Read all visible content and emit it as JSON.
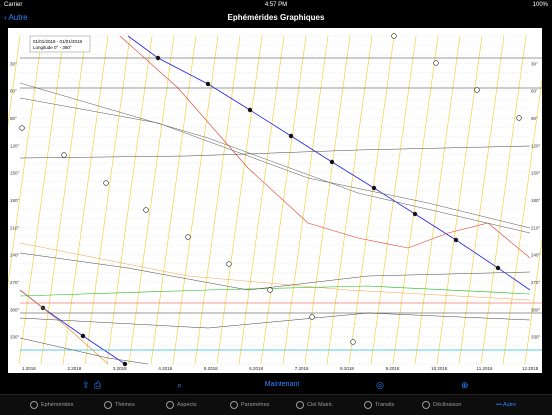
{
  "status": {
    "carrier": "Carrier",
    "time": "4:57 PM",
    "battery": "100%"
  },
  "nav": {
    "back": "Autre",
    "title": "Ephémérides Graphiques"
  },
  "chart_info": {
    "range": "01/01/2018 - 01/01/2018",
    "longitude": "Longitude 0° - 360°"
  },
  "y_axis": [
    "30°",
    "60°",
    "90°",
    "120°",
    "150°",
    "180°",
    "210°",
    "240°",
    "270°",
    "300°",
    "330°"
  ],
  "x_axis": [
    "1.2018",
    "2.2018",
    "3.2018",
    "4.2018",
    "5.2018",
    "6.2018",
    "7.2018",
    "8.2018",
    "9.2018",
    "10.2018",
    "11.2018",
    "12.2018"
  ],
  "toolbar": {
    "now": "Maintenant"
  },
  "tabs": [
    "Ephémérides",
    "Thèmes",
    "Aspects",
    "Paramètres",
    "Ciel Maint.",
    "Transits",
    "Déclinaison",
    "Autre"
  ],
  "colors": {
    "accent": "#2a86ff",
    "blue_line": "#2222ee",
    "red_line": "#e03a2a",
    "orange_line": "#f08a1a",
    "green_line": "#22bb22",
    "cyan_line": "#22bbdd",
    "grid_yellow": "#f2cc2a"
  }
}
